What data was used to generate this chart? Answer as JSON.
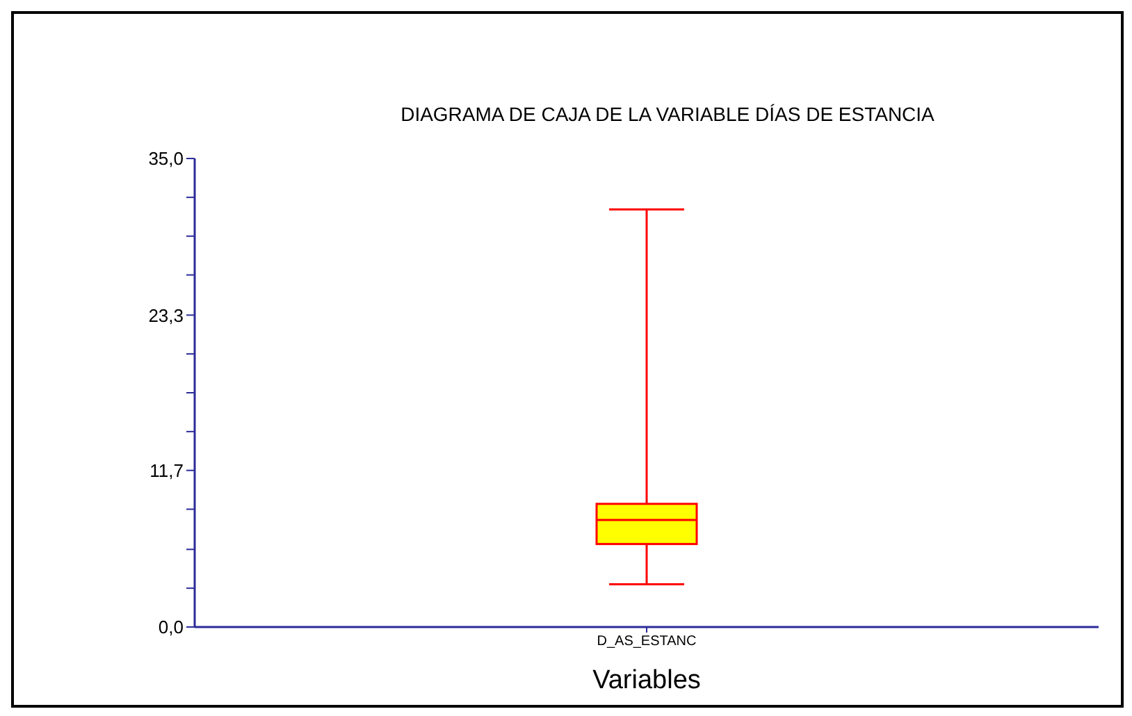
{
  "chart_data": {
    "type": "box",
    "title": "DIAGRAMA DE CAJA DE LA VARIABLE DÍAS DE ESTANCIA",
    "xlabel": "Variables",
    "categories": [
      "D_AS_ESTANC"
    ],
    "color": "#ffff00",
    "boxes": [
      {
        "low": 3.2,
        "q1": 6.2,
        "median": 8.0,
        "q3": 9.2,
        "high": 31.2
      }
    ],
    "ylim": [
      0,
      35
    ],
    "yticks": [
      {
        "value": 0,
        "label": "0,0"
      },
      {
        "value": 2.9,
        "label": null
      },
      {
        "value": 5.8,
        "label": null
      },
      {
        "value": 8.8,
        "label": null
      },
      {
        "value": 11.7,
        "label": "11,7"
      },
      {
        "value": 14.6,
        "label": null
      },
      {
        "value": 17.5,
        "label": null
      },
      {
        "value": 20.4,
        "label": null
      },
      {
        "value": 23.3,
        "label": "23,3"
      },
      {
        "value": 26.3,
        "label": null
      },
      {
        "value": 29.2,
        "label": null
      },
      {
        "value": 32.1,
        "label": null
      },
      {
        "value": 35,
        "label": "35,0"
      }
    ]
  }
}
